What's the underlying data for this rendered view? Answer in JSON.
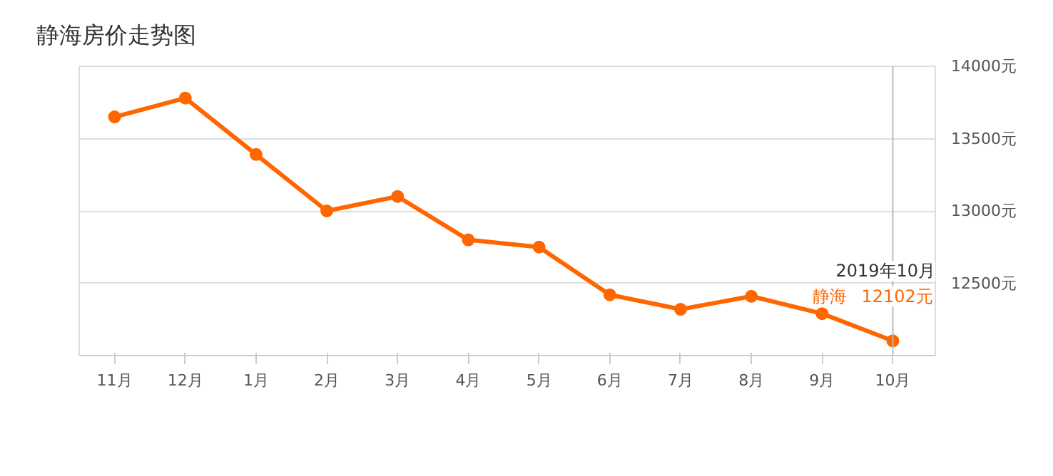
{
  "chart_data": {
    "type": "line",
    "title": "静海房价走势图",
    "categories": [
      "11月",
      "12月",
      "1月",
      "2月",
      "3月",
      "4月",
      "5月",
      "6月",
      "7月",
      "8月",
      "9月",
      "10月"
    ],
    "series": [
      {
        "name": "静海",
        "color": "#ff6600",
        "values": [
          13650,
          13780,
          13390,
          13000,
          13100,
          12800,
          12750,
          12420,
          12320,
          12410,
          12290,
          12102
        ],
        "value_labels": [
          null,
          null,
          null,
          null,
          null,
          null,
          null,
          null,
          null,
          null,
          null,
          "12102元"
        ]
      }
    ],
    "annotations": [
      "2019年10月"
    ],
    "ref_lines": [
      {
        "axis": "x",
        "value": "10月",
        "color": "#bbbbbb"
      }
    ],
    "ylim": [
      12000,
      14000
    ],
    "yticks": [
      {
        "value": 12000,
        "label": null
      },
      {
        "value": 12500,
        "label": "12500元"
      },
      {
        "value": 13000,
        "label": "13000元"
      },
      {
        "value": 13500,
        "label": "13500元"
      },
      {
        "value": 14000,
        "label": "14000元"
      }
    ],
    "grid": "y",
    "marker": "circle",
    "line_style": "solid"
  }
}
